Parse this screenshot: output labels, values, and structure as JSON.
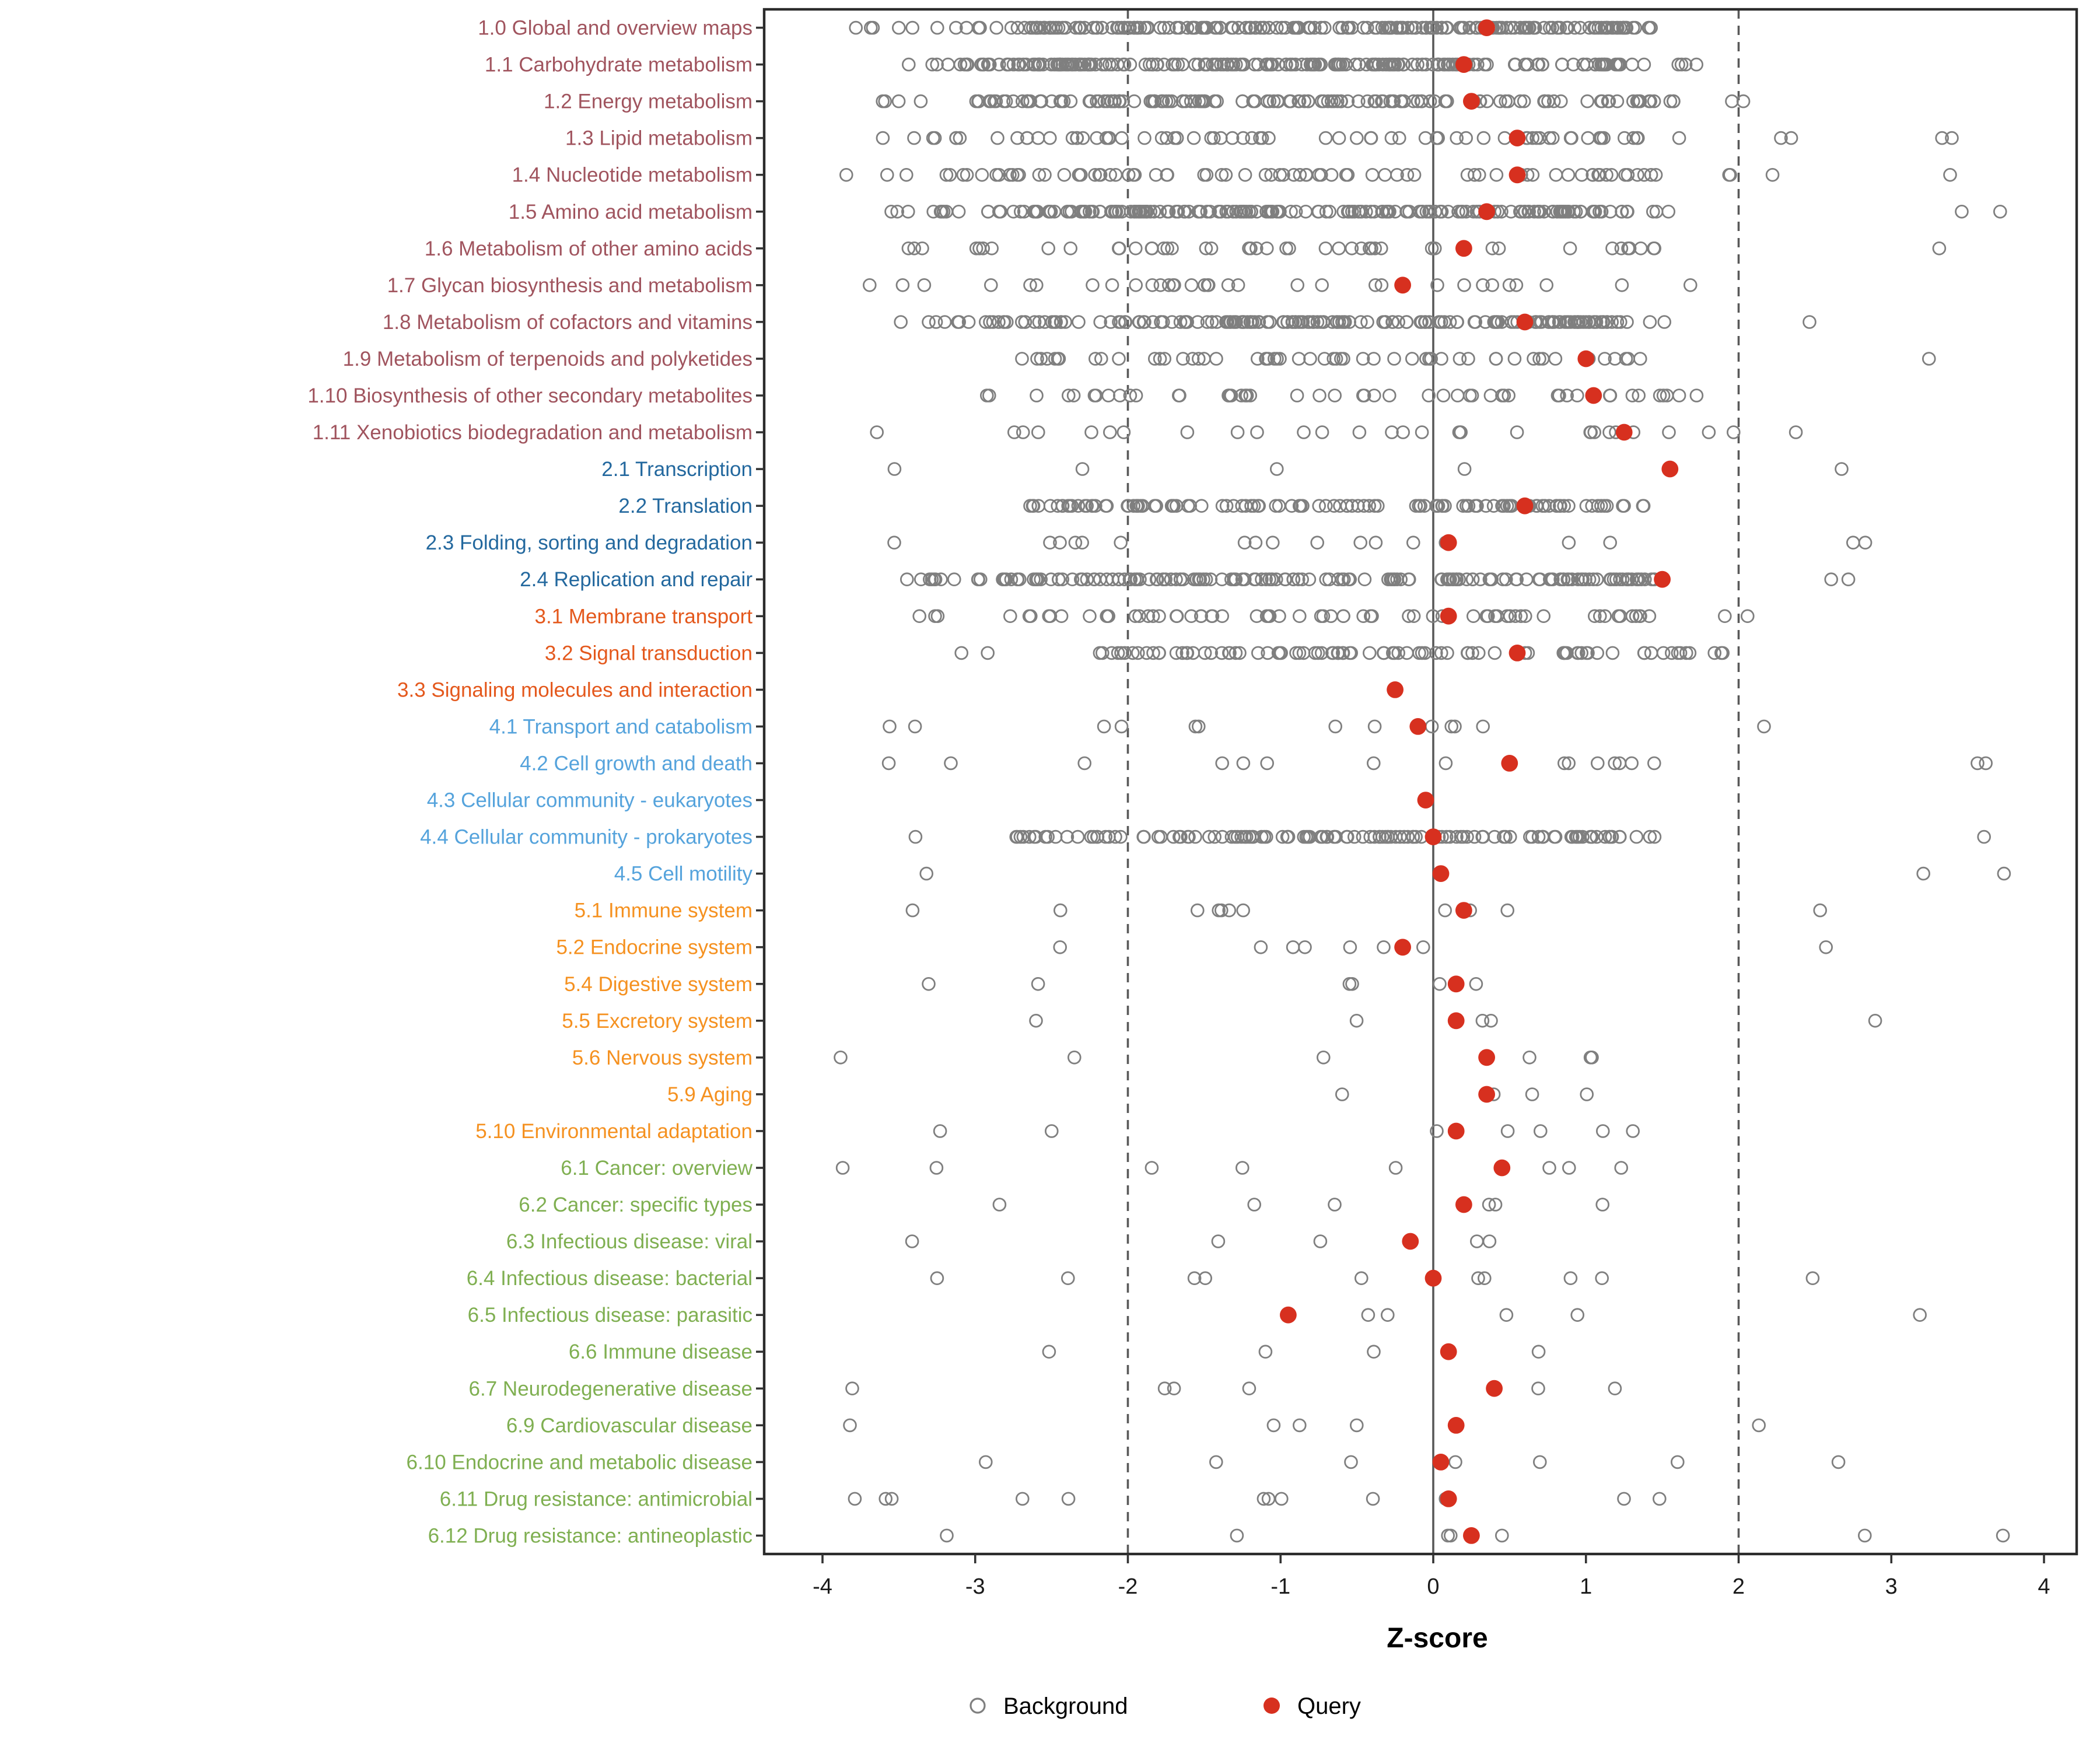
{
  "chart_data": {
    "type": "scatter",
    "title": "",
    "xlabel": "Z-score",
    "ylabel": "",
    "xlim": [
      -4.4,
      4.2
    ],
    "x_ticks": [
      -4,
      -3,
      -2,
      -1,
      0,
      1,
      2,
      3,
      4
    ],
    "ref_lines": {
      "solid": [
        0
      ],
      "dashed": [
        -2,
        2
      ]
    },
    "grid": false,
    "legend_position": "bottom",
    "legend": [
      {
        "label": "Background",
        "marker": "open-circle",
        "color": "#7F7F7F"
      },
      {
        "label": "Query",
        "marker": "filled-circle",
        "color": "#D7301F"
      }
    ],
    "group_colors": {
      "1": "#A0545E",
      "2": "#23689E",
      "3": "#E4581C",
      "4": "#55A3DC",
      "5": "#F59120",
      "6": "#7FAF51"
    },
    "point_style": {
      "background_stroke": "#7F7F7F",
      "query_fill": "#D7301F"
    },
    "categories": [
      {
        "label": "1.0 Global and overview maps",
        "group": "1",
        "query": 0.35,
        "background_clusters": [
          [
            -3.95,
            -3.4,
            5
          ],
          [
            -3.3,
            -2.6,
            12
          ],
          [
            -2.6,
            1.35,
            190
          ],
          [
            1.4,
            1.6,
            3
          ]
        ]
      },
      {
        "label": "1.1 Carbohydrate metabolism",
        "group": "1",
        "query": 0.2,
        "background_clusters": [
          [
            -3.55,
            -3.15,
            4
          ],
          [
            -3.1,
            1.25,
            200
          ],
          [
            1.3,
            1.75,
            6
          ]
        ]
      },
      {
        "label": "1.2 Energy metabolism",
        "group": "1",
        "query": 0.25,
        "background_clusters": [
          [
            -3.75,
            -3.3,
            4
          ],
          [
            -3.0,
            1.6,
            150
          ],
          [
            1.9,
            2.1,
            2
          ]
        ]
      },
      {
        "label": "1.3 Lipid metabolism",
        "group": "1",
        "query": 0.55,
        "background_clusters": [
          [
            -3.75,
            -3.0,
            7
          ],
          [
            -2.9,
            1.7,
            65
          ],
          [
            2.2,
            2.5,
            2
          ],
          [
            3.3,
            3.8,
            2
          ]
        ]
      },
      {
        "label": "1.4 Nucleotide metabolism",
        "group": "1",
        "query": 0.55,
        "background_clusters": [
          [
            -3.85,
            -3.4,
            3
          ],
          [
            -3.2,
            1.6,
            75
          ],
          [
            1.7,
            1.95,
            2
          ],
          [
            2.1,
            2.3,
            1
          ],
          [
            3.2,
            3.4,
            1
          ]
        ]
      },
      {
        "label": "1.5 Amino acid metabolism",
        "group": "1",
        "query": 0.35,
        "background_clusters": [
          [
            -3.65,
            -3.0,
            9
          ],
          [
            -3.0,
            1.3,
            180
          ],
          [
            1.35,
            1.6,
            3
          ],
          [
            3.4,
            3.75,
            2
          ]
        ]
      },
      {
        "label": "1.6 Metabolism of other amino acids",
        "group": "1",
        "query": 0.2,
        "background_clusters": [
          [
            -3.6,
            -3.2,
            3
          ],
          [
            -3.0,
            1.5,
            42
          ],
          [
            3.3,
            3.5,
            1
          ]
        ]
      },
      {
        "label": "1.7 Glycan biosynthesis and metabolism",
        "group": "1",
        "query": -0.2,
        "background_clusters": [
          [
            -3.7,
            -3.3,
            3
          ],
          [
            -2.9,
            1.7,
            30
          ]
        ]
      },
      {
        "label": "1.8 Metabolism of cofactors and vitamins",
        "group": "1",
        "query": 0.6,
        "background_clusters": [
          [
            -3.5,
            -2.9,
            9
          ],
          [
            -2.9,
            1.35,
            165
          ],
          [
            1.4,
            1.6,
            2
          ],
          [
            2.3,
            2.5,
            1
          ]
        ]
      },
      {
        "label": "1.9 Metabolism of terpenoids and polyketides",
        "group": "1",
        "query": 1.0,
        "background_clusters": [
          [
            -2.75,
            1.6,
            55
          ],
          [
            3.1,
            3.3,
            1
          ]
        ]
      },
      {
        "label": "1.10 Biosynthesis of other secondary metabolites",
        "group": "1",
        "query": 1.05,
        "background_clusters": [
          [
            -2.95,
            -2.55,
            3
          ],
          [
            -2.4,
            1.75,
            48
          ]
        ]
      },
      {
        "label": "1.11 Xenobiotics biodegradation and metabolism",
        "group": "1",
        "query": 1.25,
        "background_clusters": [
          [
            -3.65,
            -3.45,
            1
          ],
          [
            -3.0,
            1.6,
            26
          ],
          [
            1.8,
            2.4,
            3
          ]
        ]
      },
      {
        "label": "2.1 Transcription",
        "group": "2",
        "query": 1.55,
        "background_clusters": [
          [
            -3.55,
            -3.45,
            1
          ],
          [
            -2.3,
            -2.15,
            1
          ],
          [
            -1.05,
            -0.95,
            1
          ],
          [
            0.1,
            0.25,
            1
          ],
          [
            2.5,
            2.7,
            1
          ]
        ]
      },
      {
        "label": "2.2 Translation",
        "group": "2",
        "query": 0.6,
        "background_clusters": [
          [
            -2.65,
            1.15,
            115
          ],
          [
            1.2,
            1.5,
            4
          ]
        ]
      },
      {
        "label": "2.3 Folding, sorting and degradation",
        "group": "2",
        "query": 0.1,
        "background_clusters": [
          [
            -3.6,
            -3.5,
            1
          ],
          [
            -2.6,
            1.3,
            15
          ],
          [
            2.75,
            3.0,
            2
          ]
        ]
      },
      {
        "label": "2.4 Replication and repair",
        "group": "2",
        "query": 1.5,
        "background_clusters": [
          [
            -3.5,
            -2.9,
            11
          ],
          [
            -2.9,
            1.45,
            155
          ],
          [
            2.6,
            3.1,
            2
          ]
        ]
      },
      {
        "label": "3.1 Membrane transport",
        "group": "3",
        "query": 0.1,
        "background_clusters": [
          [
            -3.6,
            -3.2,
            3
          ],
          [
            -2.8,
            1.6,
            62
          ],
          [
            1.9,
            2.2,
            2
          ]
        ]
      },
      {
        "label": "3.2 Signal transduction",
        "group": "3",
        "query": 0.55,
        "background_clusters": [
          [
            -3.15,
            -2.85,
            2
          ],
          [
            -2.2,
            1.7,
            85
          ],
          [
            1.75,
            1.95,
            3
          ]
        ]
      },
      {
        "label": "3.3 Signaling molecules and interaction",
        "group": "3",
        "query": -0.25,
        "background_clusters": []
      },
      {
        "label": "4.1 Transport and catabolism",
        "group": "4",
        "query": -0.1,
        "background_clusters": [
          [
            -3.7,
            -3.55,
            1
          ],
          [
            -3.4,
            -3.3,
            1
          ],
          [
            -2.6,
            1.4,
            10
          ],
          [
            2.1,
            2.3,
            1
          ]
        ]
      },
      {
        "label": "4.2 Cell growth and death",
        "group": "4",
        "query": 0.5,
        "background_clusters": [
          [
            -3.65,
            -3.5,
            1
          ],
          [
            -3.2,
            -3.05,
            1
          ],
          [
            -2.6,
            1.5,
            13
          ],
          [
            3.4,
            3.7,
            2
          ]
        ]
      },
      {
        "label": "4.3 Cellular community - eukaryotes",
        "group": "4",
        "query": -0.05,
        "background_clusters": []
      },
      {
        "label": "4.4 Cellular community - prokaryotes",
        "group": "4",
        "query": 0.0,
        "background_clusters": [
          [
            -3.45,
            -3.35,
            1
          ],
          [
            -2.75,
            1.5,
            125
          ],
          [
            3.55,
            3.65,
            1
          ]
        ]
      },
      {
        "label": "4.5 Cell motility",
        "group": "4",
        "query": 0.05,
        "background_clusters": [
          [
            -3.35,
            -3.25,
            1
          ],
          [
            3.2,
            3.4,
            1
          ],
          [
            3.6,
            3.8,
            1
          ]
        ]
      },
      {
        "label": "5.1 Immune system",
        "group": "5",
        "query": 0.2,
        "background_clusters": [
          [
            -3.5,
            -3.4,
            1
          ],
          [
            -2.45,
            -2.3,
            1
          ],
          [
            -1.6,
            1.5,
            8
          ],
          [
            2.4,
            2.6,
            1
          ]
        ]
      },
      {
        "label": "5.2 Endocrine system",
        "group": "5",
        "query": -0.2,
        "background_clusters": [
          [
            -2.5,
            -2.4,
            1
          ],
          [
            -1.5,
            1.3,
            6
          ],
          [
            2.4,
            2.6,
            1
          ]
        ]
      },
      {
        "label": "5.4 Digestive system",
        "group": "5",
        "query": 0.15,
        "background_clusters": [
          [
            -3.35,
            -3.25,
            1
          ],
          [
            -2.6,
            -2.5,
            1
          ],
          [
            -0.8,
            1.0,
            4
          ]
        ]
      },
      {
        "label": "5.5 Excretory system",
        "group": "5",
        "query": 0.15,
        "background_clusters": [
          [
            -2.7,
            -2.6,
            1
          ],
          [
            -0.9,
            0.9,
            3
          ],
          [
            2.8,
            3.0,
            1
          ]
        ]
      },
      {
        "label": "5.6 Nervous system",
        "group": "5",
        "query": 0.35,
        "background_clusters": [
          [
            -3.9,
            -3.8,
            1
          ],
          [
            -2.4,
            -2.3,
            1
          ],
          [
            -1.0,
            1.3,
            4
          ]
        ]
      },
      {
        "label": "5.9 Aging",
        "group": "5",
        "query": 0.35,
        "background_clusters": [
          [
            -1.5,
            1.45,
            4
          ]
        ]
      },
      {
        "label": "5.10 Environmental adaptation",
        "group": "5",
        "query": 0.15,
        "background_clusters": [
          [
            -3.3,
            -3.2,
            1
          ],
          [
            -2.5,
            -2.4,
            1
          ],
          [
            -1.5,
            1.6,
            5
          ]
        ]
      },
      {
        "label": "6.1 Cancer: overview",
        "group": "6",
        "query": 0.45,
        "background_clusters": [
          [
            -3.95,
            -3.85,
            1
          ],
          [
            -3.3,
            -3.2,
            1
          ],
          [
            -2.4,
            1.5,
            6
          ]
        ]
      },
      {
        "label": "6.2 Cancer: specific types",
        "group": "6",
        "query": 0.2,
        "background_clusters": [
          [
            -2.9,
            -2.8,
            1
          ],
          [
            -2.0,
            1.2,
            5
          ]
        ]
      },
      {
        "label": "6.3 Infectious disease: viral",
        "group": "6",
        "query": -0.15,
        "background_clusters": [
          [
            -3.5,
            -3.4,
            1
          ],
          [
            -1.5,
            1.1,
            4
          ]
        ]
      },
      {
        "label": "6.4 Infectious disease: bacterial",
        "group": "6",
        "query": 0.0,
        "background_clusters": [
          [
            -3.3,
            -3.2,
            1
          ],
          [
            -2.4,
            -2.3,
            1
          ],
          [
            -1.6,
            1.6,
            7
          ],
          [
            2.3,
            2.5,
            1
          ]
        ]
      },
      {
        "label": "6.5 Infectious disease: parasitic",
        "group": "6",
        "query": -0.95,
        "background_clusters": [
          [
            -0.45,
            1.1,
            4
          ],
          [
            3.0,
            3.2,
            1
          ]
        ]
      },
      {
        "label": "6.6 Immune disease",
        "group": "6",
        "query": 0.1,
        "background_clusters": [
          [
            -2.55,
            -2.45,
            1
          ],
          [
            -1.3,
            1.2,
            3
          ]
        ]
      },
      {
        "label": "6.7 Neurodegenerative disease",
        "group": "6",
        "query": 0.4,
        "background_clusters": [
          [
            -3.85,
            -3.75,
            1
          ],
          [
            -2.1,
            1.3,
            5
          ]
        ]
      },
      {
        "label": "6.9 Cardiovascular disease",
        "group": "6",
        "query": 0.15,
        "background_clusters": [
          [
            -3.9,
            -3.8,
            1
          ],
          [
            -1.2,
            1.3,
            3
          ],
          [
            2.0,
            2.2,
            1
          ]
        ]
      },
      {
        "label": "6.10 Endocrine and metabolic disease",
        "group": "6",
        "query": 0.05,
        "background_clusters": [
          [
            -2.95,
            -2.85,
            1
          ],
          [
            -1.6,
            0.7,
            4
          ],
          [
            1.5,
            1.6,
            1
          ],
          [
            2.5,
            2.7,
            1
          ]
        ]
      },
      {
        "label": "6.11 Drug resistance: antimicrobial",
        "group": "6",
        "query": 0.1,
        "background_clusters": [
          [
            -3.85,
            -3.5,
            3
          ],
          [
            -2.7,
            1.6,
            9
          ]
        ]
      },
      {
        "label": "6.12 Drug resistance: antineoplastic",
        "group": "6",
        "query": 0.25,
        "background_clusters": [
          [
            -3.25,
            -3.15,
            1
          ],
          [
            -1.4,
            1.1,
            4
          ],
          [
            2.8,
            3.0,
            1
          ],
          [
            3.6,
            3.8,
            1
          ]
        ]
      }
    ]
  }
}
